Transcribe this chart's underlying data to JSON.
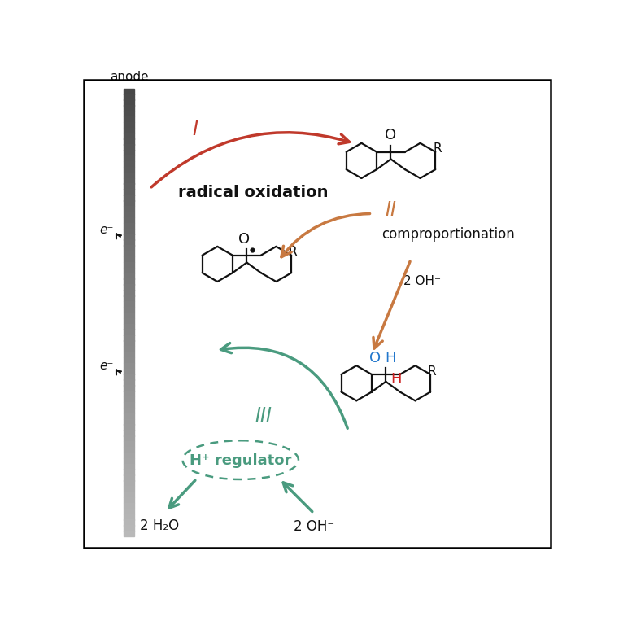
{
  "bg_color": "#ffffff",
  "border_color": "#000000",
  "red_color": "#c0392b",
  "orange_color": "#c87941",
  "green_color": "#4a9b7f",
  "black_color": "#111111",
  "blue_color": "#2277cc",
  "red_H_color": "#cc2222",
  "label_I": "I",
  "label_II": "II",
  "label_III": "III",
  "text_radical": "radical oxidation",
  "text_comproportionation": "comproportionation",
  "text_hplus": "H⁺ regulator",
  "text_anode": "anode",
  "text_e1": "e⁻",
  "text_e2": "e⁻",
  "text_2OH_top": "2 OH⁻",
  "text_2OH_bottom": "2 OH⁻",
  "text_2H2O": "2 H₂O"
}
